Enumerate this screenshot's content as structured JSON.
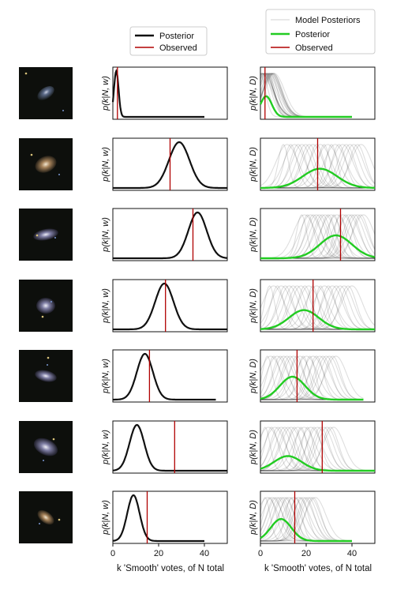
{
  "chart_data": {
    "type": "line",
    "xlim": [
      0,
      50
    ],
    "xticks": [
      0,
      20,
      40
    ],
    "xlabel_left": "k 'Smooth' votes, of N total",
    "xlabel_right": "k 'Smooth' votes, of N total",
    "ylabel_left": "p(k|N, w)",
    "ylabel_right": "p(k|N, D)",
    "legend_left": {
      "posterior": "Posterior",
      "observed": "Observed"
    },
    "legend_right": {
      "model_posteriors": "Model Posteriors",
      "posterior": "Posterior",
      "observed": "Observed"
    },
    "colors": {
      "posterior_single": "#111111",
      "posterior_mixture": "#22cc22",
      "observed": "#b00000",
      "model": "#000000"
    },
    "galaxies": [
      {
        "N": 40,
        "observed": 2,
        "single_mean": 1.5,
        "single_sd": 1.0,
        "mixture_mean": 2.5,
        "mixture_sd": 2.5,
        "mixture_peak": 0.45,
        "model_centers": [
          0,
          6
        ]
      },
      {
        "N": 50,
        "observed": 25,
        "single_mean": 29,
        "single_sd": 4.5,
        "mixture_mean": 26,
        "mixture_sd": 7.5,
        "mixture_peak": 0.42,
        "model_centers": [
          10,
          44
        ]
      },
      {
        "N": 50,
        "observed": 35,
        "single_mean": 37,
        "single_sd": 4.0,
        "mixture_mean": 33,
        "mixture_sd": 7.0,
        "mixture_peak": 0.5,
        "model_centers": [
          18,
          45
        ]
      },
      {
        "N": 50,
        "observed": 23,
        "single_mean": 22.5,
        "single_sd": 4.0,
        "mixture_mean": 19,
        "mixture_sd": 6.5,
        "mixture_peak": 0.42,
        "model_centers": [
          4,
          40
        ]
      },
      {
        "N": 45,
        "observed": 16,
        "single_mean": 14,
        "single_sd": 3.5,
        "mixture_mean": 14,
        "mixture_sd": 5.5,
        "mixture_peak": 0.5,
        "model_centers": [
          3,
          33
        ]
      },
      {
        "N": 50,
        "observed": 27,
        "single_mean": 10.5,
        "single_sd": 3.2,
        "mixture_mean": 12,
        "mixture_sd": 6.0,
        "mixture_peak": 0.32,
        "model_centers": [
          2,
          32
        ]
      },
      {
        "N": 40,
        "observed": 15,
        "single_mean": 9,
        "single_sd": 2.7,
        "mixture_mean": 9,
        "mixture_sd": 4.5,
        "mixture_peak": 0.48,
        "model_centers": [
          2,
          24
        ]
      }
    ]
  }
}
